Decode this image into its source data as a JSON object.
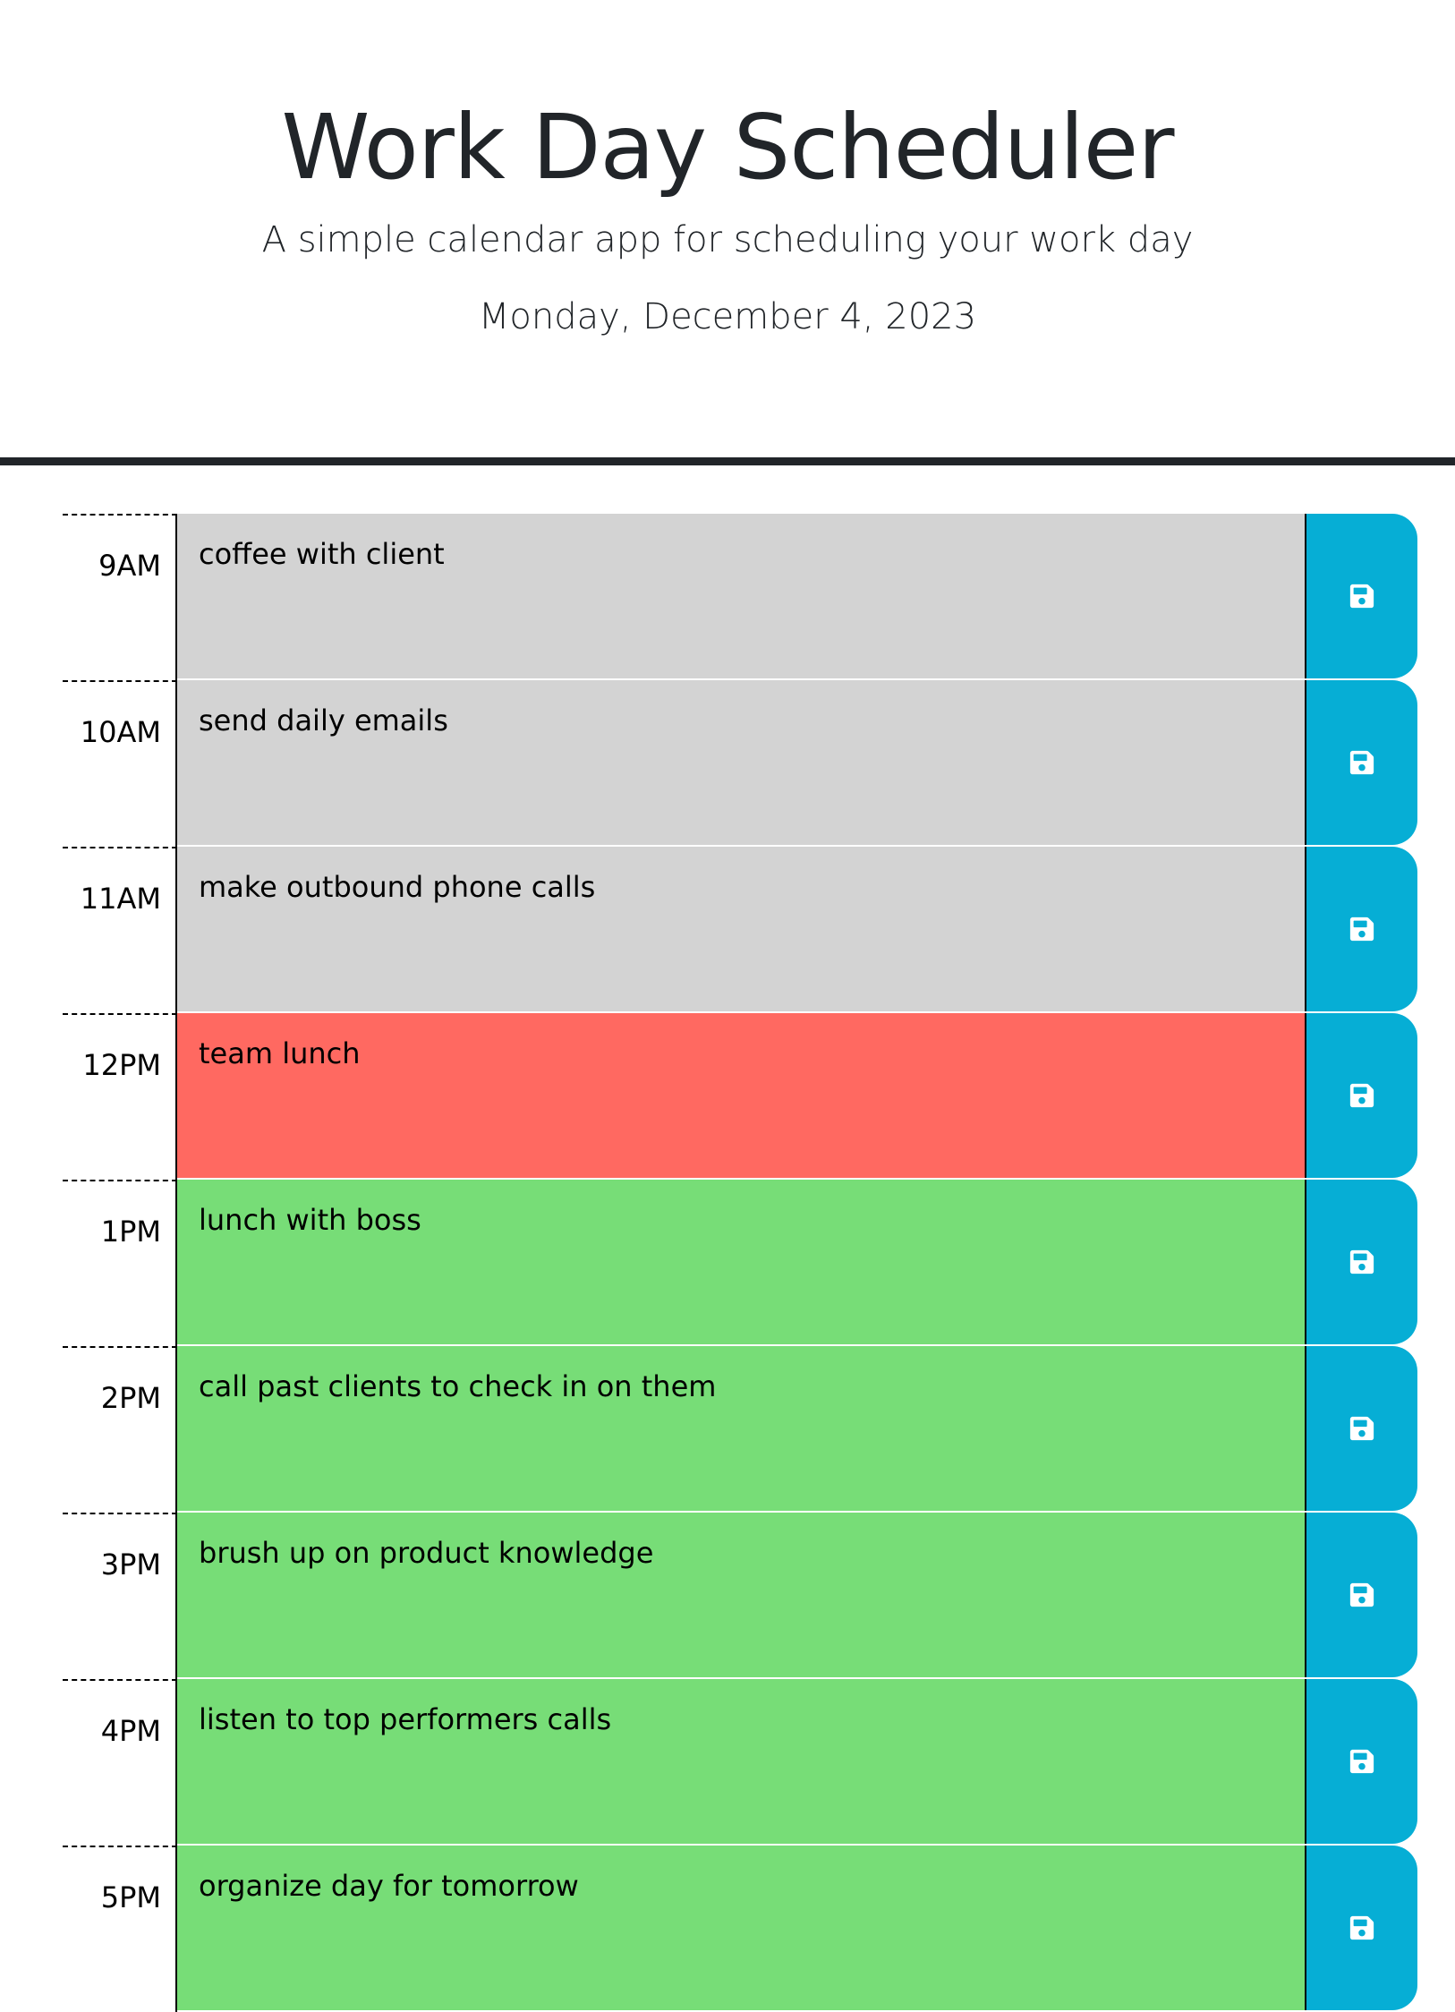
{
  "header": {
    "title": "Work Day Scheduler",
    "subtitle": "A simple calendar app for scheduling your work day",
    "current_day": "Monday, December 4, 2023"
  },
  "timeblocks": [
    {
      "hour": "9AM",
      "text": "coffee with client",
      "status": "past"
    },
    {
      "hour": "10AM",
      "text": "send daily emails",
      "status": "past"
    },
    {
      "hour": "11AM",
      "text": "make outbound phone calls",
      "status": "past"
    },
    {
      "hour": "12PM",
      "text": "team lunch",
      "status": "present"
    },
    {
      "hour": "1PM",
      "text": "lunch with boss",
      "status": "future"
    },
    {
      "hour": "2PM",
      "text": "call past clients to check in on them",
      "status": "future"
    },
    {
      "hour": "3PM",
      "text": "brush up on product knowledge",
      "status": "future"
    },
    {
      "hour": "4PM",
      "text": "listen to top performers calls",
      "status": "future"
    },
    {
      "hour": "5PM",
      "text": "organize day for tomorrow",
      "status": "future"
    }
  ],
  "icons": {
    "save": "floppy-disk-icon"
  },
  "colors": {
    "past": "#d3d3d3",
    "present": "#ff6961",
    "future": "#77dd77",
    "save_button": "#06aed5"
  }
}
